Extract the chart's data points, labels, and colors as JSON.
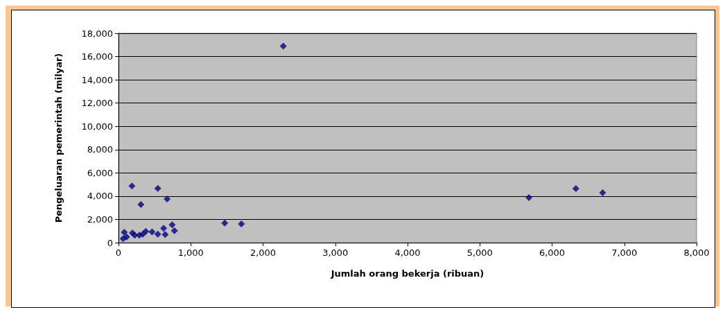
{
  "chart_data": {
    "type": "scatter",
    "xlabel": "Jumlah orang bekerja (ribuan)",
    "ylabel": "Pengeluaran pemerintah (milyar)",
    "x": [
      64,
      80,
      112,
      192,
      224,
      288,
      336,
      377,
      464,
      544,
      624,
      646,
      742,
      774,
      185,
      544,
      310,
      672,
      1470,
      1700,
      2280,
      5680,
      6330,
      6700
    ],
    "values": [
      340,
      890,
      490,
      830,
      640,
      640,
      730,
      970,
      930,
      730,
      1230,
      700,
      1530,
      1030,
      4870,
      4670,
      3280,
      3750,
      1690,
      1610,
      16900,
      3870,
      4650,
      4290
    ],
    "color": "#000080",
    "marker": "diamond",
    "grid": "y",
    "xlim": [
      0,
      8000
    ],
    "xticks": [
      0,
      {
        "value": 1000,
        "label": "1,000"
      },
      {
        "value": 2000,
        "label": "2,000"
      },
      {
        "value": 3000,
        "label": "3,000"
      },
      {
        "value": 4000,
        "label": "4,000"
      },
      {
        "value": 5000,
        "label": "5,000"
      },
      {
        "value": 6000,
        "label": "6,000"
      },
      {
        "value": 7000,
        "label": "7,000"
      },
      {
        "value": 8000,
        "label": "8,000"
      }
    ],
    "ylim": [
      0,
      18000
    ],
    "yticks": [
      0,
      {
        "value": 2000,
        "label": "2,000"
      },
      {
        "value": 4000,
        "label": "4,000"
      },
      {
        "value": 6000,
        "label": "6,000"
      },
      {
        "value": 8000,
        "label": "8,000"
      },
      {
        "value": 10000,
        "label": "10,000"
      },
      {
        "value": 12000,
        "label": "12,000"
      },
      {
        "value": 14000,
        "label": "14,000"
      },
      {
        "value": 16000,
        "label": "16,000"
      },
      {
        "value": 18000,
        "label": "18,000"
      }
    ]
  }
}
